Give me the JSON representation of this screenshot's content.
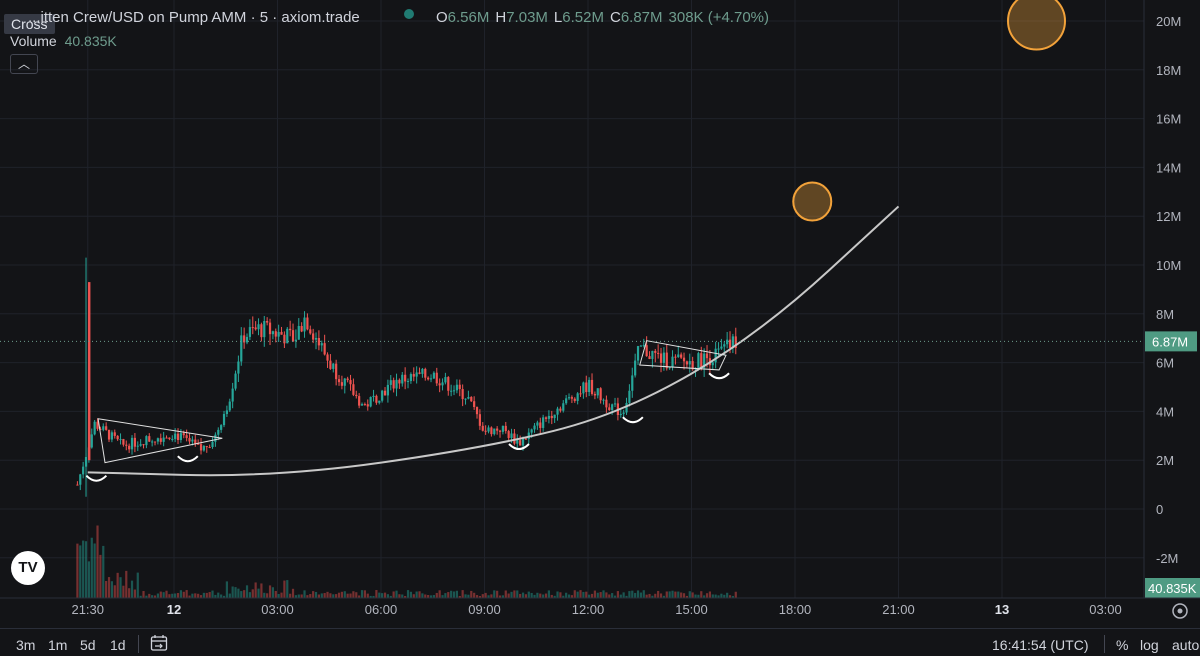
{
  "header": {
    "symbol_title": "...itten Crew/USD on Pump AMM · 5 · axiom.trade",
    "ohlc": [
      {
        "key": "O",
        "value": "6.56M"
      },
      {
        "key": "H",
        "value": "7.03M"
      },
      {
        "key": "L",
        "value": "6.52M"
      },
      {
        "key": "C",
        "value": "6.87M"
      }
    ],
    "change": "308K (+4.70%)",
    "crosshair_label": "Cross",
    "volume_label": "Volume",
    "volume_value": "40.835K",
    "collapse_icon": "chevron-up-icon"
  },
  "colors": {
    "background": "#131417",
    "up": "#26a69a",
    "down": "#ef5350",
    "accent_price": "#6e9c8d",
    "annotation_circle": "#f2a23a"
  },
  "chart_data": {
    "type": "candlestick",
    "title": "",
    "price_axis": {
      "ticks": [
        "20M",
        "18M",
        "16M",
        "14M",
        "12M",
        "10M",
        "8M",
        "6M",
        "4M",
        "2M",
        "0",
        "-2M"
      ],
      "values": [
        20,
        18,
        16,
        14,
        12,
        10,
        8,
        6,
        4,
        2,
        0,
        -2
      ],
      "unit": "M",
      "ylim": [
        -3.5,
        21
      ]
    },
    "time_axis": {
      "ticks": [
        "21:30",
        "12",
        "03:00",
        "06:00",
        "09:00",
        "12:00",
        "15:00",
        "18:00",
        "21:00",
        "13",
        "03:00"
      ],
      "hours": [
        -2.5,
        0,
        3,
        6,
        9,
        12,
        15,
        18,
        21,
        24,
        27
      ]
    },
    "current_price_label": "6.87M",
    "volume_label": "40.835K",
    "price_series_hourly": [
      {
        "h": -2.8,
        "p": 1.0
      },
      {
        "h": -2.3,
        "p": 3.5
      },
      {
        "h": -1.5,
        "p": 2.6
      },
      {
        "h": 0.0,
        "p": 3.1
      },
      {
        "h": 0.8,
        "p": 2.4
      },
      {
        "h": 1.2,
        "p": 3.0
      },
      {
        "h": 1.6,
        "p": 4.5
      },
      {
        "h": 2.0,
        "p": 7.1
      },
      {
        "h": 2.5,
        "p": 7.4
      },
      {
        "h": 3.5,
        "p": 7.0
      },
      {
        "h": 3.8,
        "p": 7.9
      },
      {
        "h": 4.5,
        "p": 6.0
      },
      {
        "h": 5.5,
        "p": 4.2
      },
      {
        "h": 6.5,
        "p": 5.3
      },
      {
        "h": 7.5,
        "p": 5.5
      },
      {
        "h": 8.5,
        "p": 4.6
      },
      {
        "h": 9.0,
        "p": 3.2
      },
      {
        "h": 9.5,
        "p": 3.3
      },
      {
        "h": 10.0,
        "p": 2.7
      },
      {
        "h": 11.0,
        "p": 4.0
      },
      {
        "h": 12.0,
        "p": 5.1
      },
      {
        "h": 12.5,
        "p": 4.4
      },
      {
        "h": 13.0,
        "p": 3.9
      },
      {
        "h": 13.5,
        "p": 6.6
      },
      {
        "h": 14.2,
        "p": 6.1
      },
      {
        "h": 15.0,
        "p": 6.0
      },
      {
        "h": 15.7,
        "p": 6.3
      },
      {
        "h": 16.3,
        "p": 6.87
      }
    ],
    "annotations": [
      {
        "type": "parabola",
        "points": [
          [
            -2.5,
            1.5
          ],
          [
            3.0,
            1.3
          ],
          [
            9.0,
            2.5
          ],
          [
            13.0,
            3.9
          ],
          [
            17.0,
            7.2
          ],
          [
            21.0,
            12.4
          ]
        ]
      },
      {
        "type": "circle",
        "h": 18.5,
        "p": 12.6,
        "r": 2.0
      },
      {
        "type": "circle",
        "h": 25.0,
        "p": 20.0,
        "r": 3.0
      },
      {
        "type": "triangle",
        "points": [
          [
            -2.2,
            3.7
          ],
          [
            -2.0,
            1.9
          ],
          [
            1.4,
            2.9
          ]
        ]
      },
      {
        "type": "triangle",
        "points": [
          [
            13.7,
            6.9
          ],
          [
            13.5,
            5.9
          ],
          [
            15.8,
            5.7
          ],
          [
            16.0,
            6.3
          ]
        ]
      }
    ]
  },
  "toolbar": {
    "ranges": [
      "3m",
      "1m",
      "5d",
      "1d"
    ],
    "calendar_icon": "calendar-goto-icon",
    "clock": "16:41:54 (UTC)",
    "percent": "%",
    "log": "log",
    "auto": "auto",
    "settings_icon": "gear-icon"
  },
  "logo_text": "TV"
}
